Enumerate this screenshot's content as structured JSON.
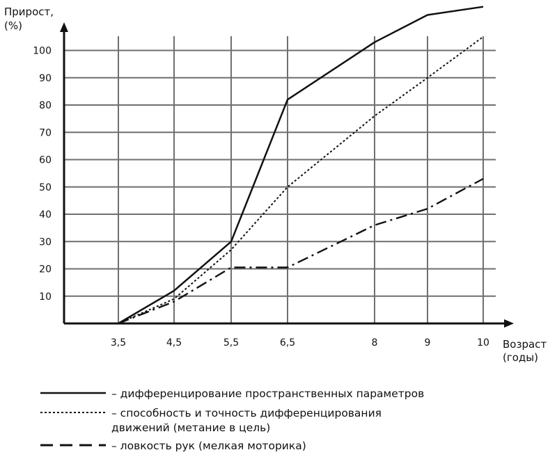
{
  "chart_data": {
    "type": "line",
    "ylabel": [
      "Прирост,",
      "(%)"
    ],
    "xlabel": [
      "Возраст",
      "(годы)"
    ],
    "x": [
      3.5,
      4.5,
      5.5,
      6.5,
      8,
      9,
      10
    ],
    "x_tick_labels": [
      "3,5",
      "4,5",
      "5,5",
      "6,5",
      "8",
      "9",
      "10"
    ],
    "y_ticks": [
      10,
      20,
      30,
      40,
      50,
      60,
      70,
      80,
      90,
      100
    ],
    "ylim": [
      0,
      110
    ],
    "grid": true,
    "legend_position": "bottom",
    "series": [
      {
        "name": "– дифференцирование пространственных параметров",
        "style": "solid",
        "color": "#111111",
        "points": [
          [
            3.5,
            0
          ],
          [
            4.5,
            12
          ],
          [
            5.5,
            30
          ],
          [
            6.5,
            82
          ],
          [
            8,
            103
          ],
          [
            9,
            113
          ],
          [
            10,
            116
          ]
        ]
      },
      {
        "name": "– способность и точность дифференцирования движений (метание в цель)",
        "legend_lines": [
          "– способность и точность дифференцирования",
          "движений (метание в цель)"
        ],
        "style": "dotted",
        "color": "#111111",
        "points": [
          [
            3.5,
            0
          ],
          [
            4.5,
            9
          ],
          [
            5.5,
            27
          ],
          [
            6.5,
            50
          ],
          [
            8,
            76
          ],
          [
            9,
            90
          ],
          [
            10,
            105
          ]
        ]
      },
      {
        "name": "– ловкость рук (мелкая моторика)",
        "style": "dashdot",
        "color": "#111111",
        "points": [
          [
            3.5,
            0
          ],
          [
            4.5,
            8
          ],
          [
            5.5,
            20.5
          ],
          [
            6.5,
            20.5
          ],
          [
            8,
            36
          ],
          [
            9,
            42
          ],
          [
            10,
            53
          ]
        ]
      }
    ]
  }
}
